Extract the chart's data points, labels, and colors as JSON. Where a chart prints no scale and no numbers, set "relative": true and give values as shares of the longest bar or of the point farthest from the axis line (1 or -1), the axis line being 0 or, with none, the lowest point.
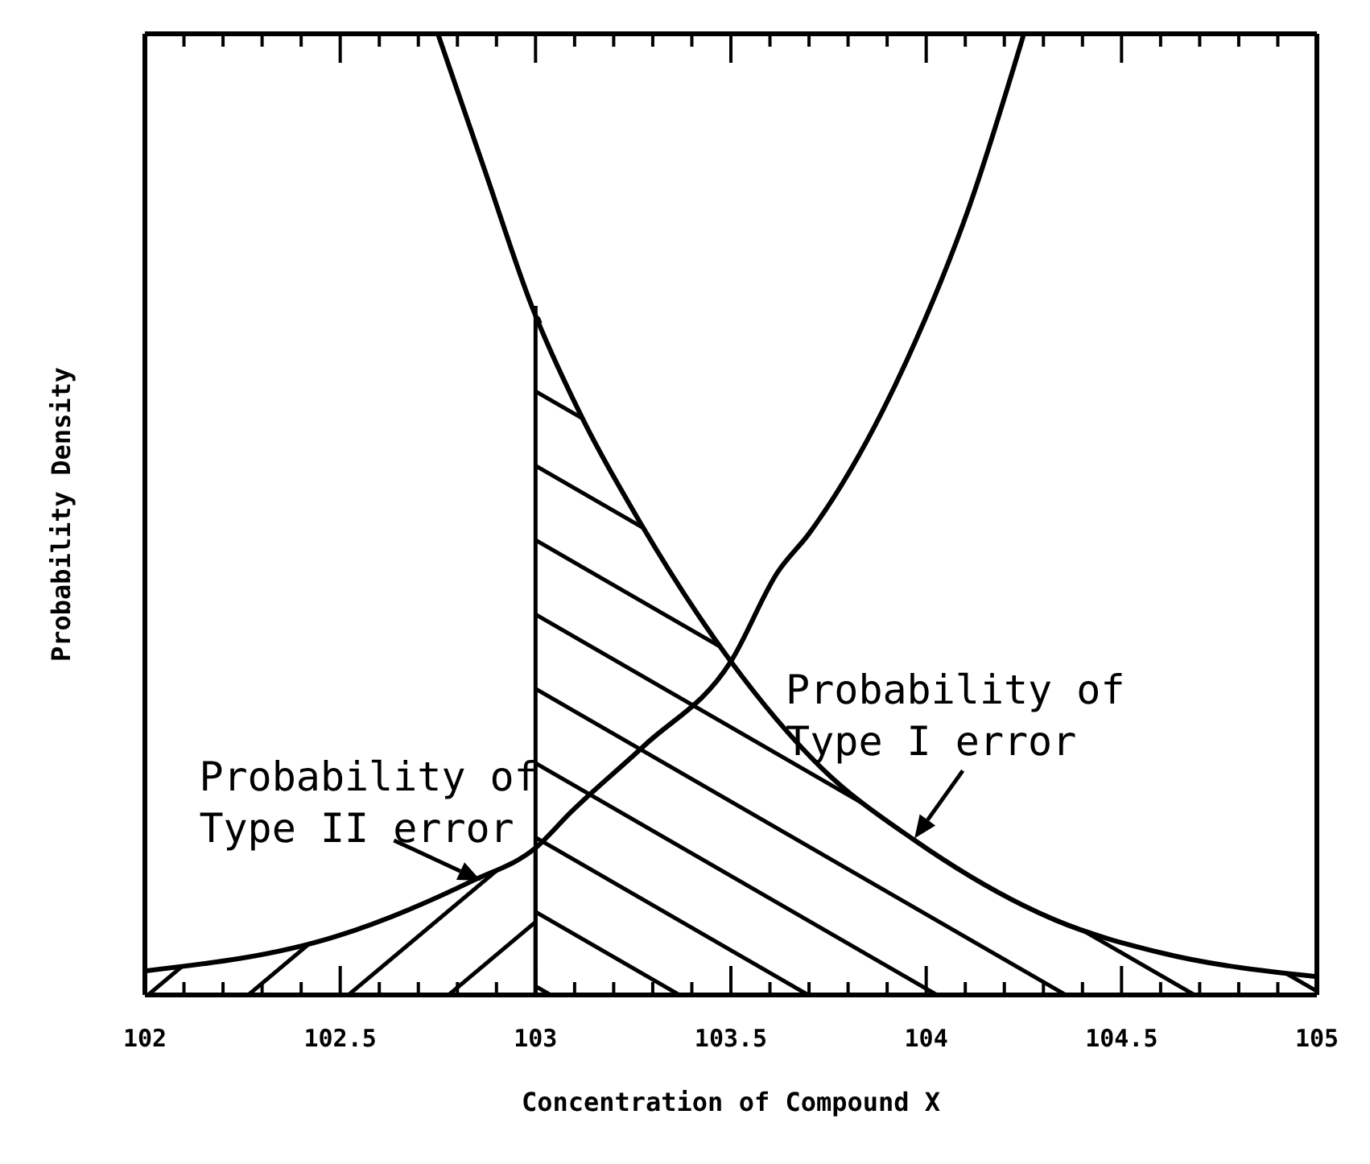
{
  "chart_data": {
    "type": "line",
    "relative": true,
    "xlabel": "Concentration of Compound X",
    "ylabel": "Probability Density",
    "xlim": [
      102,
      105
    ],
    "xticks": [
      102,
      {
        "value": 102.1,
        "label": null
      },
      {
        "value": 102.2,
        "label": null
      },
      {
        "value": 102.3,
        "label": null
      },
      {
        "value": 102.4,
        "label": null
      },
      {
        "value": 102.5,
        "label": "102.5"
      },
      {
        "value": 102.6,
        "label": null
      },
      {
        "value": 102.7,
        "label": null
      },
      {
        "value": 102.8,
        "label": null
      },
      {
        "value": 102.9,
        "label": null
      },
      103,
      {
        "value": 103.1,
        "label": null
      },
      {
        "value": 103.2,
        "label": null
      },
      {
        "value": 103.3,
        "label": null
      },
      {
        "value": 103.4,
        "label": null
      },
      {
        "value": 103.5,
        "label": "103.5"
      },
      {
        "value": 103.6,
        "label": null
      },
      {
        "value": 103.7,
        "label": null
      },
      {
        "value": 103.8,
        "label": null
      },
      {
        "value": 103.9,
        "label": null
      },
      104,
      {
        "value": 104.1,
        "label": null
      },
      {
        "value": 104.2,
        "label": null
      },
      {
        "value": 104.3,
        "label": null
      },
      {
        "value": 104.4,
        "label": null
      },
      {
        "value": 104.5,
        "label": "104.5"
      },
      {
        "value": 104.6,
        "label": null
      },
      {
        "value": 104.7,
        "label": null
      },
      {
        "value": 104.8,
        "label": null
      },
      {
        "value": 104.9,
        "label": null
      },
      105
    ],
    "marker": "none",
    "line_style": "solid",
    "series": [
      {
        "color": "#000000",
        "x": [
          102.75,
          102.87,
          102.99,
          103.12,
          103.27,
          103.5,
          103.73,
          103.97,
          104.33,
          104.6,
          105
        ],
        "values": [
          1.0,
          0.858,
          0.717,
          0.6,
          0.49,
          0.347,
          0.237,
          0.161,
          0.078,
          0.044,
          0.019
        ]
      },
      {
        "color": "#000000",
        "x": [
          102,
          102.49,
          102.84,
          103,
          103.09,
          103.28,
          103.5,
          103.62,
          103.7,
          103.95,
          104.11,
          104.25
        ],
        "values": [
          0.025,
          0.061,
          0.119,
          0.153,
          0.19,
          0.26,
          0.347,
          0.44,
          0.48,
          0.66,
          0.82,
          1.0
        ]
      },
      {
        "type": "area",
        "color": "#000000",
        "x": [
          102,
          102.49,
          102.84,
          103
        ],
        "values": [
          0.025,
          0.061,
          0.119,
          0.153
        ]
      },
      {
        "type": "area",
        "color": "#000000",
        "x": [
          103,
          103.12,
          103.27,
          103.5,
          103.73,
          103.97,
          104.33,
          104.6,
          105
        ],
        "values": [
          0.717,
          0.6,
          0.49,
          0.347,
          0.237,
          0.161,
          0.078,
          0.044,
          0.019
        ]
      }
    ],
    "annotations": [
      {
        "text": "Probability of Type II error",
        "x": 102.86,
        "y": 0.119
      },
      {
        "text": "Probability of Type I error",
        "x": 103.97,
        "y": 0.163
      }
    ]
  }
}
